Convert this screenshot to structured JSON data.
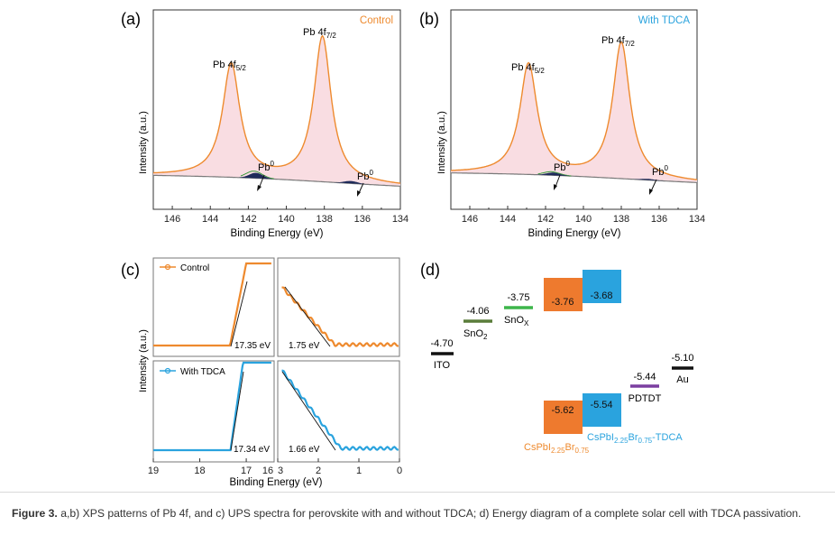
{
  "figure": {
    "caption_label": "Figure 3.",
    "caption_text": "a,b) XPS patterns of Pb 4f, and c) UPS spectra for perovskite with and without TDCA; d) Energy diagram of a complete solar cell with TDCA passivation."
  },
  "colors": {
    "control": "#ee8a2e",
    "tdca": "#2aa3de",
    "baseline": "#7a7a7a",
    "fill": "#f9dde2",
    "sno2": "#5a7d3a",
    "snox": "#3db54a",
    "pdtdt": "#7b3fa0",
    "black": "#111111"
  },
  "panels": {
    "a": {
      "label": "(a)",
      "legend": "Control",
      "ylabel": "Intensity (a.u.)",
      "xlabel": "Binding Energy (eV)",
      "peak_4f52": {
        "base": "Pb 4f",
        "sub": "5/2"
      },
      "peak_4f72": {
        "base": "Pb 4f",
        "sub": "7/2"
      },
      "pb0_1": {
        "base": "Pb",
        "sup": "0"
      },
      "pb0_2": {
        "base": "Pb",
        "sup": "0"
      }
    },
    "b": {
      "label": "(b)",
      "legend": "With TDCA",
      "ylabel": "Intensity (a.u.)",
      "xlabel": "Binding Energy (eV)",
      "peak_4f52": {
        "base": "Pb 4f",
        "sub": "5/2"
      },
      "peak_4f72": {
        "base": "Pb 4f",
        "sub": "7/2"
      },
      "pb0_1": {
        "base": "Pb",
        "sup": "0"
      },
      "pb0_2": {
        "base": "Pb",
        "sup": "0"
      }
    },
    "c": {
      "label": "(c)",
      "ylabel": "Intensity (a.u.)",
      "xlabel": "Binding Energy (eV)",
      "legend_top": "Control",
      "legend_bottom": "With TDCA",
      "cutoff_control": "17.35 eV",
      "cutoff_tdca": "17.34 eV",
      "onset_control": "1.75 eV",
      "onset_tdca": "1.66 eV"
    },
    "d": {
      "label": "(d)",
      "ito_value": "-4.70",
      "ito_name": "ITO",
      "sno2_value": "-4.06",
      "sno2_name": {
        "base": "SnO",
        "sub": "2"
      },
      "snox_value": "-3.75",
      "snox_name": {
        "base": "SnO",
        "sub": "X"
      },
      "cb_csp": "-3.76",
      "cb_tdca": "-3.68",
      "vb_csp": "-5.62",
      "vb_tdca": "-5.54",
      "pdtdt_value": "-5.44",
      "pdtdt_name": "PDTDT",
      "au_value": "-5.10",
      "au_name": "Au",
      "csp_name": {
        "p1": "CsPbI",
        "s1": "2.25",
        "p2": "Br",
        "s2": "0.75"
      },
      "tdca_name": {
        "p1": "CsPbI",
        "s1": "2.25",
        "p2": "Br",
        "s2": "0.75",
        "p3": "-TDCA"
      }
    }
  },
  "chart_data": [
    {
      "type": "line",
      "panel": "a",
      "xlabel": "Binding Energy (eV)",
      "ylabel": "Intensity (a.u.)",
      "xlim": [
        147,
        134
      ],
      "x_ticks": [
        146,
        144,
        142,
        140,
        138,
        136,
        134
      ],
      "series": [
        {
          "name": "Control",
          "peaks": [
            {
              "label": "Pb 4f5/2",
              "x": 142.9
            },
            {
              "label": "Pb 4f7/2",
              "x": 138.1
            },
            {
              "label": "Pb0",
              "x": 141.6
            },
            {
              "label": "Pb0",
              "x": 136.6
            }
          ]
        }
      ]
    },
    {
      "type": "line",
      "panel": "b",
      "xlabel": "Binding Energy (eV)",
      "ylabel": "Intensity (a.u.)",
      "xlim": [
        147,
        134
      ],
      "x_ticks": [
        146,
        144,
        142,
        140,
        138,
        136,
        134
      ],
      "series": [
        {
          "name": "With TDCA",
          "peaks": [
            {
              "label": "Pb 4f5/2",
              "x": 142.9
            },
            {
              "label": "Pb 4f7/2",
              "x": 138.0
            },
            {
              "label": "Pb0",
              "x": 141.6
            },
            {
              "label": "Pb0",
              "x": 136.6
            }
          ]
        }
      ]
    },
    {
      "type": "line",
      "panel": "c",
      "xlabel": "Binding Energy (eV)",
      "ylabel": "Intensity (a.u.)",
      "x_ticks": [
        19,
        18,
        17,
        16,
        3,
        2,
        1,
        0
      ],
      "series": [
        {
          "name": "Control",
          "cutoff_eV": 17.35,
          "onset_eV": 1.75
        },
        {
          "name": "With TDCA",
          "cutoff_eV": 17.34,
          "onset_eV": 1.66
        }
      ]
    },
    {
      "type": "diagram",
      "panel": "d",
      "levels_eV": {
        "ITO": -4.7,
        "SnO2": -4.06,
        "SnOX": -3.75,
        "CsPbI2.25Br0.75_CB": -3.76,
        "CsPbI2.25Br0.75-TDCA_CB": -3.68,
        "CsPbI2.25Br0.75_VB": -5.62,
        "CsPbI2.25Br0.75-TDCA_VB": -5.54,
        "PDTDT": -5.44,
        "Au": -5.1
      }
    }
  ]
}
